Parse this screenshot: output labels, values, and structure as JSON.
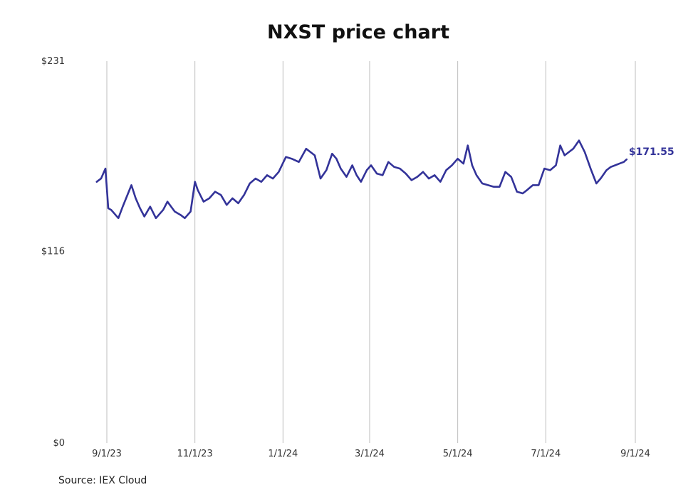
{
  "chart_data": {
    "type": "line",
    "title": "NXST price chart",
    "source": "Source: IEX Cloud",
    "y_tick_labels": [
      "$0",
      "$116",
      "$231"
    ],
    "y_ticks": [
      0,
      116,
      231
    ],
    "ylim": [
      0,
      231
    ],
    "x_tick_labels": [
      "9/1/23",
      "11/1/23",
      "1/1/24",
      "3/1/24",
      "5/1/24",
      "7/1/24",
      "9/1/24"
    ],
    "x_ticks": [
      "2023-09-01",
      "2023-11-01",
      "2024-01-01",
      "2024-03-01",
      "2024-05-01",
      "2024-07-01",
      "2024-09-01"
    ],
    "xlim": [
      "2023-08-25",
      "2024-09-01"
    ],
    "grid": "vertical",
    "line_color": "#333399",
    "last_value_label": "$171.55",
    "series": [
      {
        "x": [
          "2023-08-25",
          "2023-08-28",
          "2023-08-31",
          "2023-09-02",
          "2023-09-04",
          "2023-09-09",
          "2023-09-12",
          "2023-09-18",
          "2023-09-21",
          "2023-09-24",
          "2023-09-27",
          "2023-10-01",
          "2023-10-05",
          "2023-10-10",
          "2023-10-13",
          "2023-10-18",
          "2023-10-22",
          "2023-10-25",
          "2023-10-29",
          "2023-11-01",
          "2023-11-03",
          "2023-11-07",
          "2023-11-11",
          "2023-11-15",
          "2023-11-19",
          "2023-11-23",
          "2023-11-27",
          "2023-12-01",
          "2023-12-05",
          "2023-12-09",
          "2023-12-13",
          "2023-12-17",
          "2023-12-21",
          "2023-12-25",
          "2023-12-29",
          "2024-01-03",
          "2024-01-07",
          "2024-01-12",
          "2024-01-17",
          "2024-01-20",
          "2024-01-23",
          "2024-01-27",
          "2024-01-31",
          "2024-02-04",
          "2024-02-07",
          "2024-02-10",
          "2024-02-14",
          "2024-02-18",
          "2024-02-21",
          "2024-02-24",
          "2024-02-28",
          "2024-03-02",
          "2024-03-06",
          "2024-03-10",
          "2024-03-14",
          "2024-03-18",
          "2024-03-22",
          "2024-03-26",
          "2024-03-30",
          "2024-04-03",
          "2024-04-07",
          "2024-04-11",
          "2024-04-15",
          "2024-04-19",
          "2024-04-23",
          "2024-04-27",
          "2024-05-01",
          "2024-05-05",
          "2024-05-08",
          "2024-05-11",
          "2024-05-14",
          "2024-05-18",
          "2024-05-22",
          "2024-05-26",
          "2024-05-30",
          "2024-06-03",
          "2024-06-07",
          "2024-06-11",
          "2024-06-15",
          "2024-06-18",
          "2024-06-22",
          "2024-06-26",
          "2024-06-30",
          "2024-07-04",
          "2024-07-08",
          "2024-07-11",
          "2024-07-14",
          "2024-07-17",
          "2024-07-20",
          "2024-07-24",
          "2024-07-28",
          "2024-08-01",
          "2024-08-05",
          "2024-08-08",
          "2024-08-12",
          "2024-08-15",
          "2024-08-18",
          "2024-08-21",
          "2024-08-24",
          "2024-08-26"
        ],
        "values": [
          158,
          160,
          166,
          142,
          141,
          136,
          143,
          156,
          148,
          142,
          137,
          143,
          136,
          141,
          146,
          140,
          138,
          136,
          140,
          158,
          153,
          146,
          148,
          152,
          150,
          144,
          148,
          145,
          150,
          157,
          160,
          158,
          162,
          160,
          164,
          173,
          172,
          170,
          178,
          176,
          174,
          160,
          165,
          175,
          172,
          166,
          161,
          168,
          162,
          158,
          165,
          168,
          163,
          162,
          170,
          167,
          166,
          163,
          159,
          161,
          164,
          160,
          162,
          158,
          165,
          168,
          172,
          169,
          180,
          168,
          162,
          157,
          156,
          155,
          155,
          164,
          161,
          152,
          151,
          153,
          156,
          156,
          166,
          165,
          168,
          180,
          174,
          176,
          178,
          183,
          176,
          166,
          157,
          160,
          165,
          167,
          168,
          169,
          170,
          171.55
        ]
      }
    ]
  }
}
